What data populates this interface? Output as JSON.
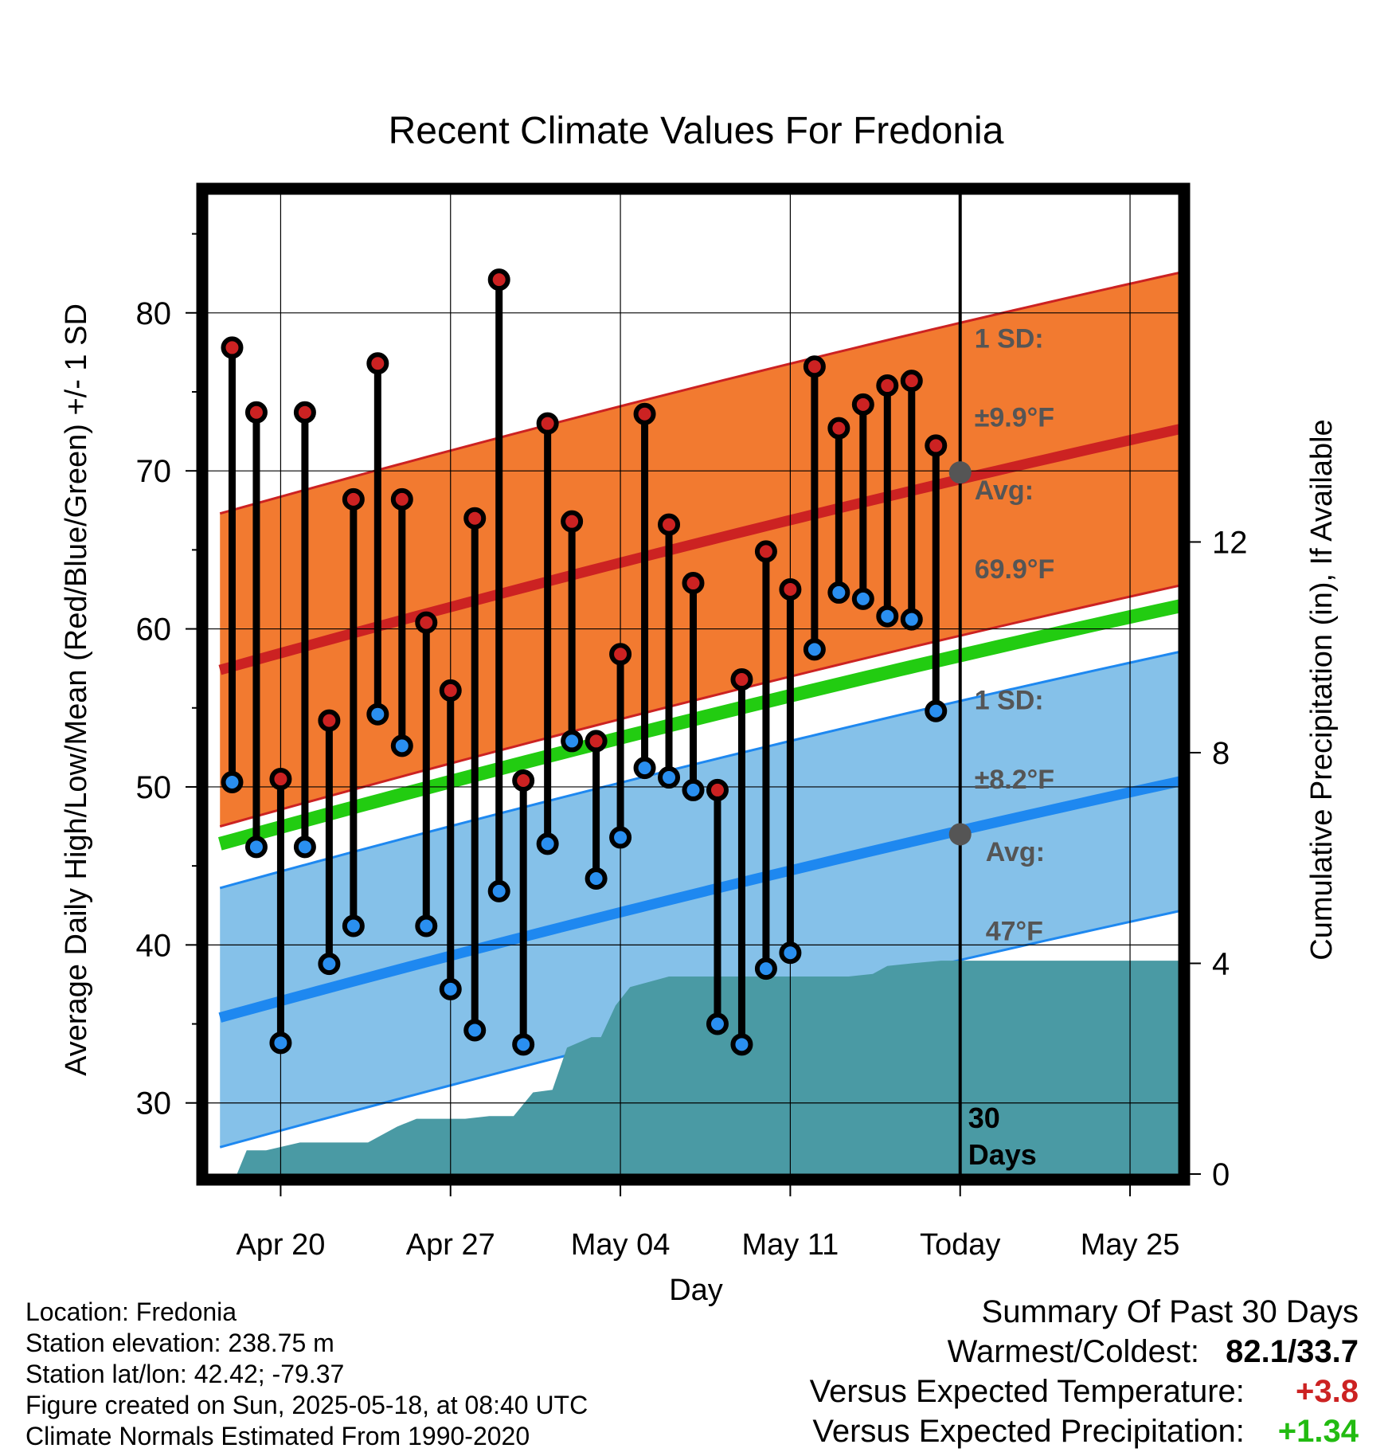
{
  "chart_data": {
    "type": "line",
    "title": "Recent Climate Values For Fredonia",
    "xlabel": "Day",
    "ylabel": "Average Daily High/Low/Mean (Red/Blue/Green) +/- 1 SD",
    "y2label": "Cumulative Precipitation (in), If Available",
    "ylim": [
      25.5,
      87.5
    ],
    "y2lim": [
      0,
      18.6
    ],
    "yticks": [
      30,
      40,
      50,
      60,
      70,
      80
    ],
    "y2ticks": [
      0,
      4,
      8,
      12
    ],
    "x_ticks": [
      {
        "label": "Apr 20",
        "day": 3
      },
      {
        "label": "Apr 27",
        "day": 10
      },
      {
        "label": "May 04",
        "day": 17
      },
      {
        "label": "May 11",
        "day": 24
      },
      {
        "label": "Today",
        "day": 31
      },
      {
        "label": "May 25",
        "day": 38
      }
    ],
    "x_range": [
      0,
      40
    ],
    "dates": [
      "Apr 18",
      "Apr 19",
      "Apr 20",
      "Apr 21",
      "Apr 22",
      "Apr 23",
      "Apr 24",
      "Apr 25",
      "Apr 26",
      "Apr 27",
      "Apr 28",
      "Apr 29",
      "Apr 30",
      "May 01",
      "May 02",
      "May 03",
      "May 04",
      "May 05",
      "May 06",
      "May 07",
      "May 08",
      "May 09",
      "May 10",
      "May 11",
      "May 12",
      "May 13",
      "May 14",
      "May 15",
      "May 16",
      "May 17"
    ],
    "series": [
      {
        "name": "High",
        "color": "#cc2222",
        "values": [
          77.8,
          73.7,
          50.5,
          73.7,
          54.2,
          68.2,
          76.8,
          68.2,
          60.4,
          56.1,
          67.0,
          82.1,
          50.4,
          73.0,
          66.8,
          52.9,
          58.4,
          73.6,
          66.6,
          62.9,
          49.8,
          56.8,
          64.9,
          62.5,
          76.6,
          72.7,
          74.2,
          75.4,
          75.7,
          71.6
        ]
      },
      {
        "name": "Low",
        "color": "#2a8ff0",
        "values": [
          50.3,
          46.2,
          33.8,
          46.2,
          38.8,
          41.2,
          54.6,
          52.6,
          41.2,
          37.2,
          34.6,
          43.4,
          33.7,
          46.4,
          52.9,
          44.2,
          46.8,
          51.2,
          50.6,
          49.8,
          35.0,
          33.7,
          38.5,
          39.5,
          58.7,
          62.3,
          61.9,
          60.8,
          60.6,
          54.8
        ]
      }
    ],
    "normals": {
      "day_range": [
        0.5,
        40.5
      ],
      "high_avg": [
        57.4,
        72.8
      ],
      "high_sd": 9.9,
      "mean_avg": [
        46.4,
        61.6
      ],
      "low_avg": [
        35.4,
        50.5
      ],
      "low_sd": 8.2
    },
    "precipitation_cumulative": [
      [
        1.2,
        0
      ],
      [
        1.6,
        0.45
      ],
      [
        2.4,
        0.45
      ],
      [
        3.8,
        0.6
      ],
      [
        6.6,
        0.6
      ],
      [
        7.8,
        0.9
      ],
      [
        8.6,
        1.05
      ],
      [
        10.6,
        1.05
      ],
      [
        11.6,
        1.1
      ],
      [
        12.6,
        1.1
      ],
      [
        13.4,
        1.55
      ],
      [
        14.2,
        1.6
      ],
      [
        14.8,
        2.4
      ],
      [
        15.8,
        2.6
      ],
      [
        16.2,
        2.6
      ],
      [
        16.8,
        3.2
      ],
      [
        17.4,
        3.55
      ],
      [
        18.2,
        3.65
      ],
      [
        19.0,
        3.75
      ],
      [
        26.4,
        3.75
      ],
      [
        27.4,
        3.8
      ],
      [
        28.0,
        3.95
      ],
      [
        29.0,
        4.0
      ],
      [
        30.2,
        4.05
      ],
      [
        40.5,
        4.05
      ]
    ],
    "annotations": {
      "high_sd_label": "1 SD:",
      "high_sd_value": "±9.9°F",
      "high_avg_label": "Avg:",
      "high_avg_value": "69.9°F",
      "high_avg_marker": 69.9,
      "low_sd_label": "1 SD:",
      "low_sd_value": "±8.2°F",
      "low_avg_label": "Avg:",
      "low_avg_value": "47°F",
      "low_avg_marker": 47,
      "days_label_1": "30",
      "days_label_2": "Days"
    },
    "colors": {
      "high_band": "#f27a30",
      "high_line": "#cc2222",
      "low_band": "#85c1e9",
      "low_line": "#1e88f0",
      "mean_line": "#22cc11",
      "precip": "#4a9aa4",
      "annotation": "#555555"
    }
  },
  "info": {
    "location": "Location: Fredonia",
    "elevation": "Station elevation: 238.75 m",
    "latlon": "Station lat/lon: 42.42; -79.37",
    "created": "Figure created on Sun, 2025-05-18, at 08:40 UTC",
    "normals": "Climate Normals Estimated From 1990-2020"
  },
  "summary": {
    "title": "Summary Of Past 30 Days",
    "warm_cold_label": "Warmest/Coldest:",
    "warm_cold_value": "82.1/33.7",
    "temp_label": "Versus Expected Temperature:",
    "temp_value": "+3.8",
    "temp_color": "#cc2222",
    "precip_label": "Versus Expected Precipitation:",
    "precip_value": "+1.34",
    "precip_color": "#22bb11"
  }
}
